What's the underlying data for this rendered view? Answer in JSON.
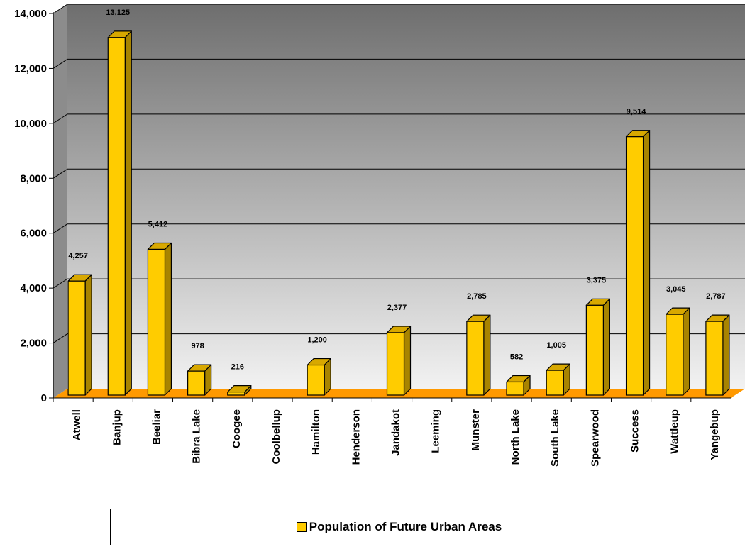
{
  "chart_data": {
    "type": "bar",
    "categories": [
      "Atwell",
      "Banjup",
      "Beeliar",
      "Bibra Lake",
      "Coogee",
      "Coolbellup",
      "Hamilton",
      "Henderson",
      "Jandakot",
      "Leeming",
      "Munster",
      "North Lake",
      "South Lake",
      "Spearwood",
      "Success",
      "Wattleup",
      "Yangebup"
    ],
    "series": [
      {
        "name": "Population of Future Urban Areas",
        "values": [
          4257,
          13125,
          5412,
          978,
          216,
          0,
          1200,
          0,
          2377,
          0,
          2785,
          582,
          1005,
          3375,
          9514,
          3045,
          2787
        ],
        "labels": [
          "4,257",
          "13,125",
          "5,412",
          "978",
          "216",
          "",
          "1,200",
          "",
          "2,377",
          "",
          "2,785",
          "582",
          "1,005",
          "3,375",
          "9,514",
          "3,045",
          "2,787"
        ]
      }
    ],
    "yticks": [
      "0",
      "2,000",
      "4,000",
      "6,000",
      "8,000",
      "10,000",
      "12,000",
      "14,000"
    ],
    "ytick_values": [
      0,
      2000,
      4000,
      6000,
      8000,
      10000,
      12000,
      14000
    ],
    "ylim": [
      0,
      14000
    ],
    "title": "",
    "xlabel": "",
    "ylabel": "",
    "grid": true,
    "legend_position": "bottom",
    "colors": {
      "bar_front": "#ffcc00",
      "bar_top": "#d8a800",
      "bar_side": "#a88400",
      "floor": "#ff9900",
      "wall_top": "#6e6e6e",
      "wall_bottom": "#f2f2f2"
    }
  }
}
